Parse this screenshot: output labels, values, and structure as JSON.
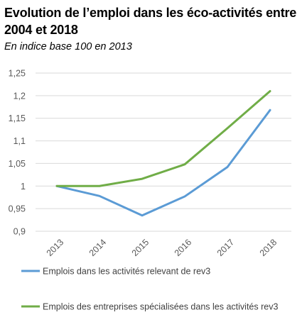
{
  "title": "Evolution de l’emploi dans les éco-activités entre 2004 et 2018",
  "subtitle": "En indice base 100 en 2013",
  "chart_data": {
    "type": "line",
    "categories": [
      "2013",
      "2014",
      "2015",
      "2016",
      "2017",
      "2018"
    ],
    "series": [
      {
        "name": "Emplois dans les activités relevant de rev3",
        "values": [
          1.0,
          0.978,
          0.935,
          0.977,
          1.042,
          1.168
        ],
        "color": "#5B9BD5"
      },
      {
        "name": "Emplois des entreprises spécialisées dans les activités rev3",
        "values": [
          1.0,
          1.0,
          1.016,
          1.048,
          1.128,
          1.21
        ],
        "color": "#70AD47"
      }
    ],
    "ylim": [
      0.9,
      1.25
    ],
    "yticks": [
      "0,9",
      "0,95",
      "1",
      "1,05",
      "1,1",
      "1,15",
      "1,2",
      "1,25"
    ],
    "ytick_values": [
      0.9,
      0.95,
      1.0,
      1.05,
      1.1,
      1.15,
      1.2,
      1.25
    ],
    "grid": true,
    "legend_position": "bottom",
    "xlabel": "",
    "ylabel": ""
  }
}
